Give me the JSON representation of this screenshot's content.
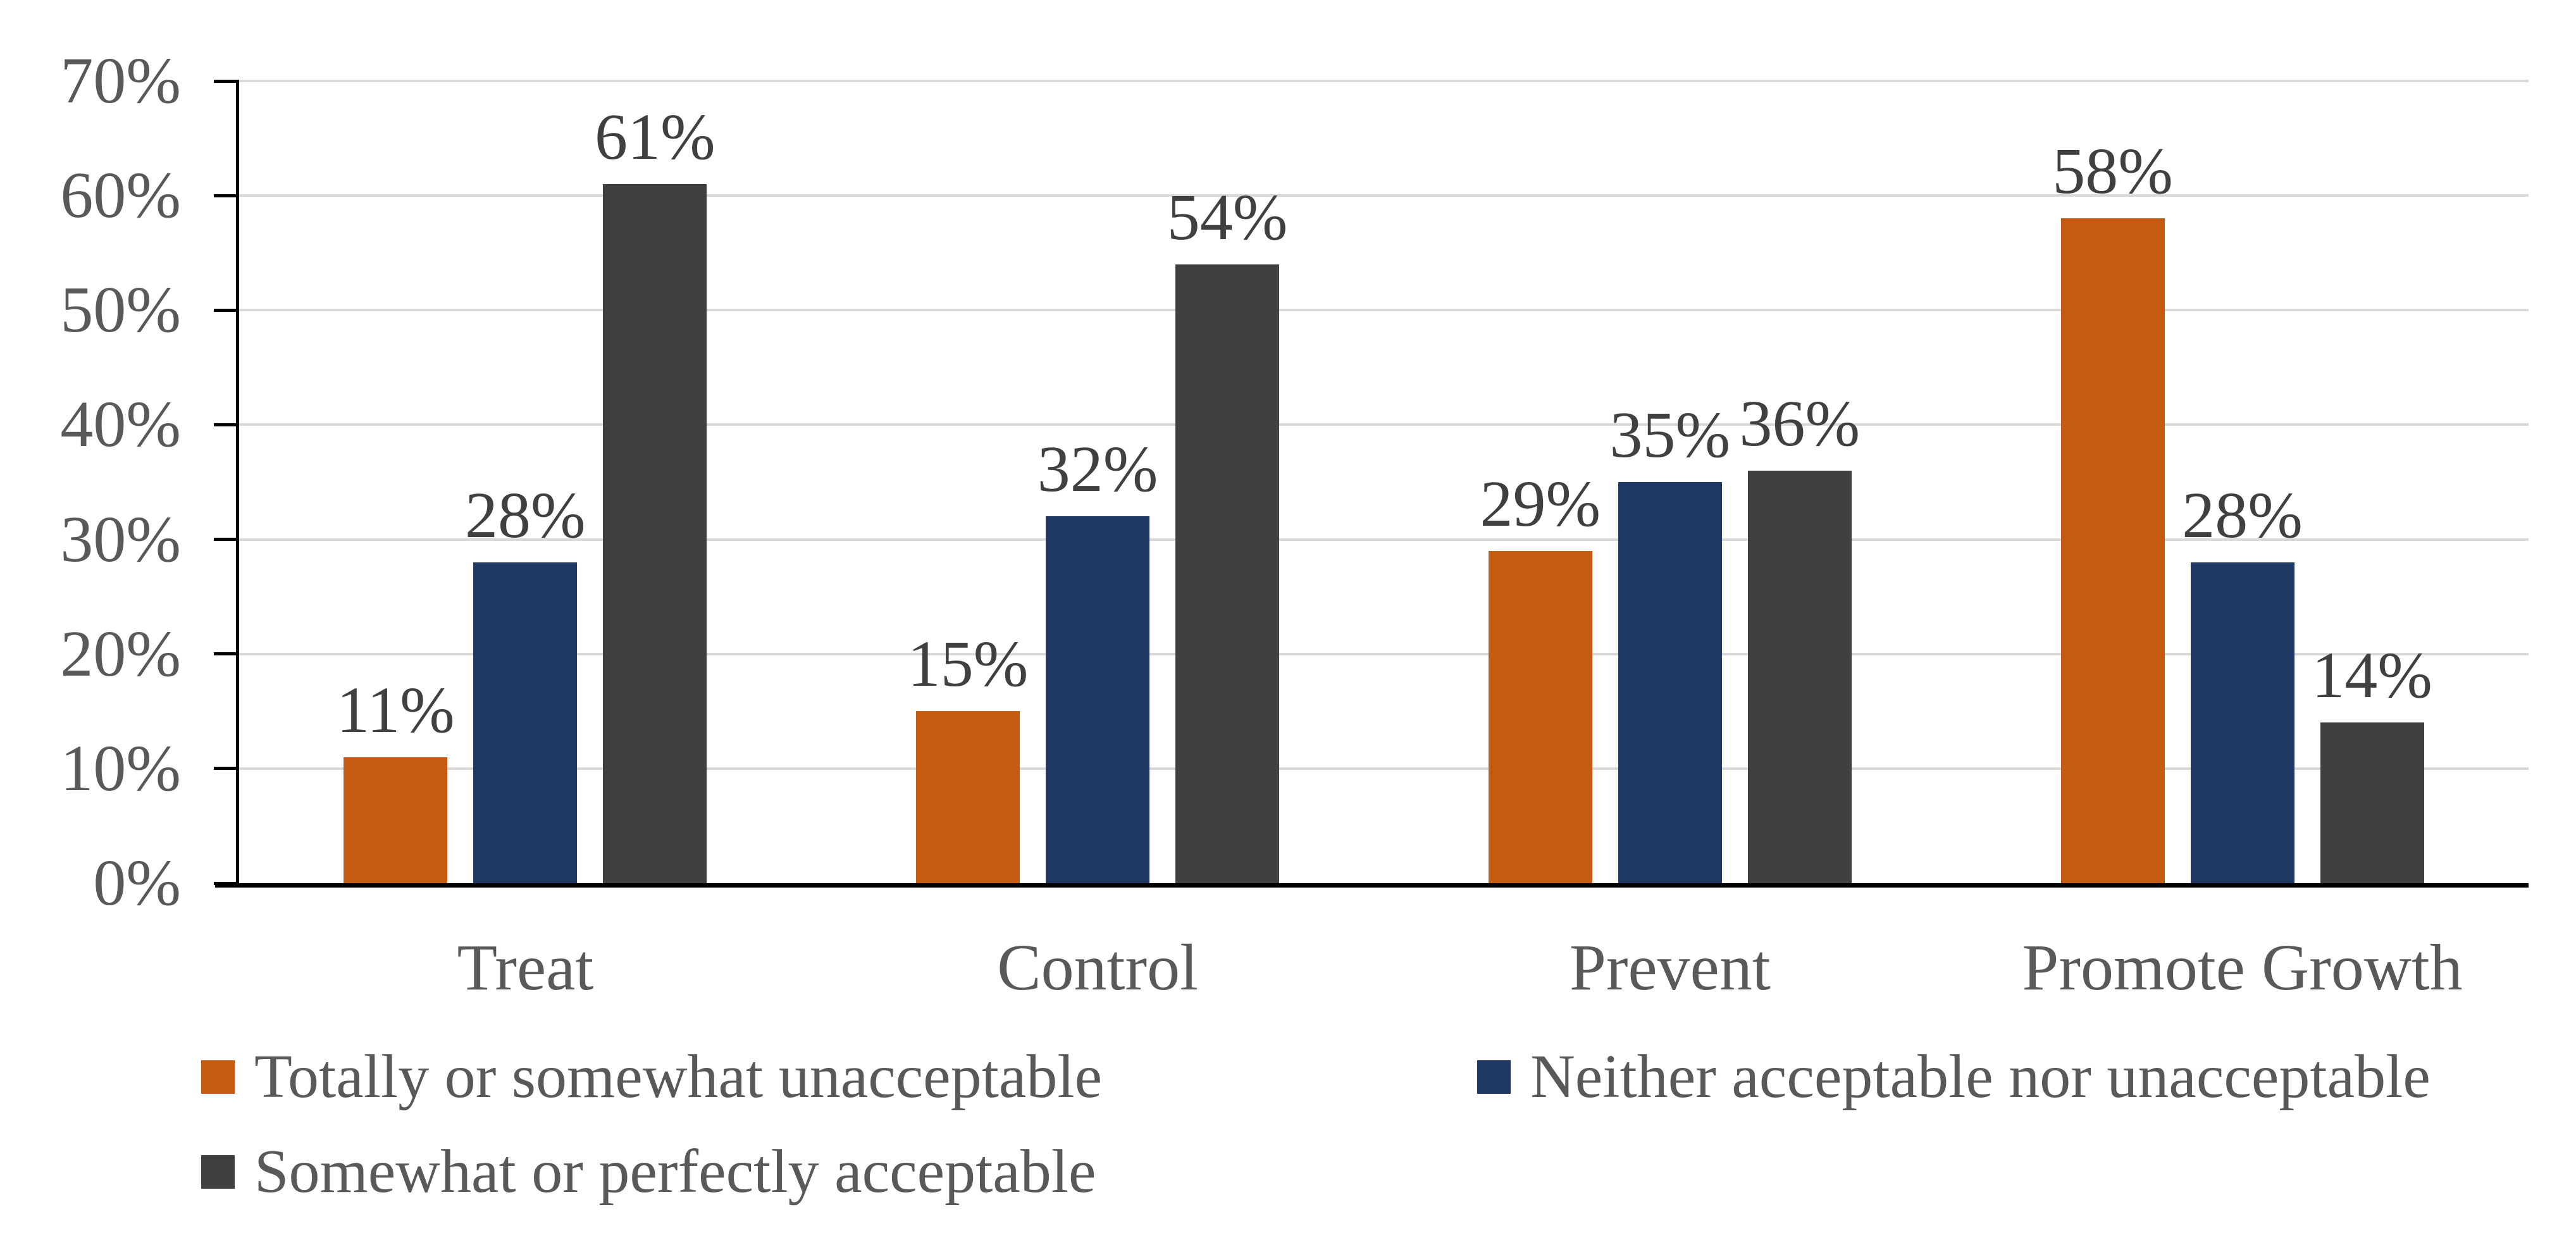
{
  "chart_data": {
    "type": "bar",
    "categories": [
      "Treat",
      "Control",
      "Prevent",
      "Promote Growth"
    ],
    "series": [
      {
        "name": "Totally or somewhat unacceptable",
        "color": "#C55A11",
        "values": [
          11,
          15,
          29,
          58
        ],
        "data_labels": [
          "11%",
          "15%",
          "29%",
          "58%"
        ]
      },
      {
        "name": "Neither acceptable nor unacceptable",
        "color": "#203864",
        "values": [
          28,
          32,
          35,
          28
        ],
        "data_labels": [
          "28%",
          "32%",
          "35%",
          "28%"
        ]
      },
      {
        "name": "Somewhat or perfectly acceptable",
        "color": "#404040",
        "values": [
          61,
          54,
          36,
          14
        ],
        "data_labels": [
          "61%",
          "54%",
          "36%",
          "14%"
        ]
      }
    ],
    "title": "",
    "xlabel": "",
    "ylabel": "",
    "ylim": [
      0,
      70
    ],
    "y_ticks": [
      {
        "value": 0,
        "label": "0%"
      },
      {
        "value": 10,
        "label": "10%"
      },
      {
        "value": 20,
        "label": "20%"
      },
      {
        "value": 30,
        "label": "30%"
      },
      {
        "value": 40,
        "label": "40%"
      },
      {
        "value": 50,
        "label": "50%"
      },
      {
        "value": 60,
        "label": "60%"
      },
      {
        "value": 70,
        "label": "70%"
      }
    ],
    "grid": "horizontal",
    "legend_position": "bottom"
  },
  "colors": {
    "background": "#FFFFFF",
    "gridline": "#D9D9D9",
    "axis_line": "#000000",
    "axis_text": "#595959",
    "data_label_text": "#404040",
    "legend_text": "#595959"
  }
}
